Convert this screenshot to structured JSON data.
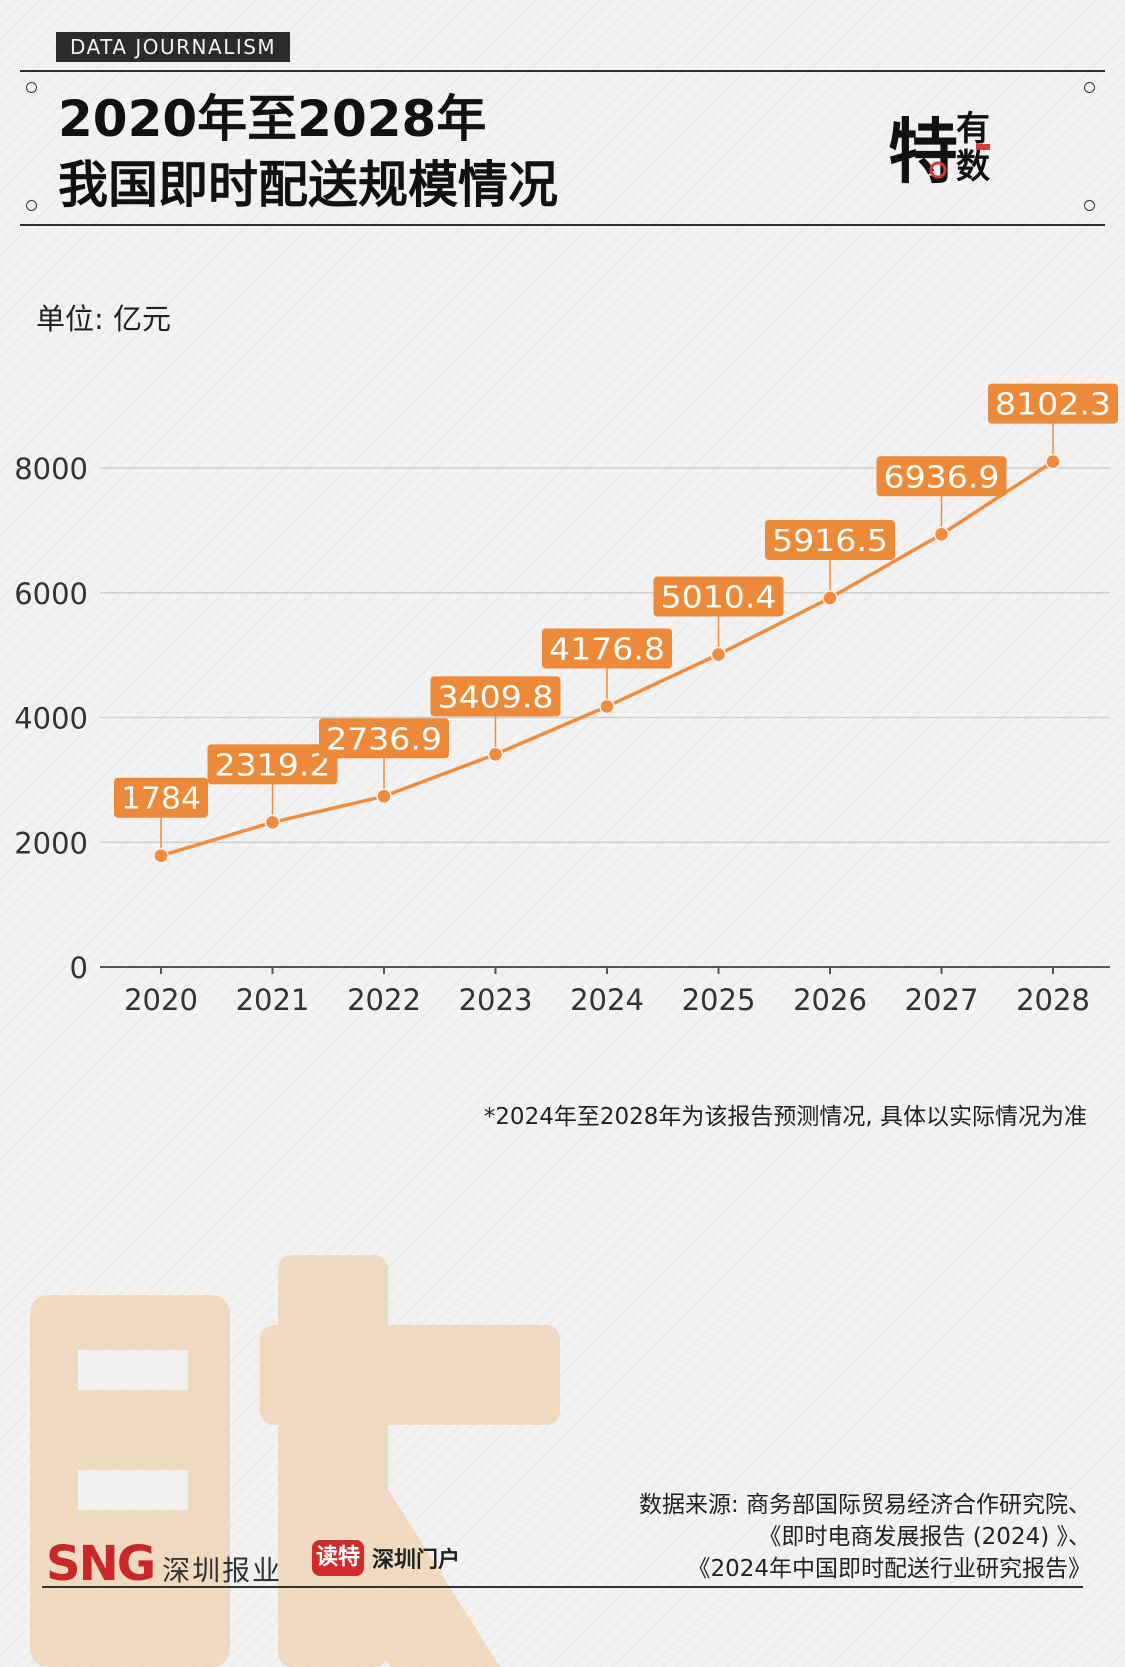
{
  "header": {
    "tag": "DATA JOURNALISM"
  },
  "brand": {
    "logo_main": "特",
    "logo_top": "有",
    "logo_bottom": "数"
  },
  "chart_data": {
    "type": "line",
    "title_lines": [
      "2020年至2028年",
      "我国即时配送规模情况"
    ],
    "unit": "单位: 亿元",
    "categories": [
      "2020",
      "2021",
      "2022",
      "2023",
      "2024",
      "2025",
      "2026",
      "2027",
      "2028"
    ],
    "series": [
      {
        "values": [
          1784,
          2319.2,
          2736.9,
          3409.8,
          4176.8,
          5010.4,
          5916.5,
          6936.9,
          8102.3
        ],
        "labels": [
          "1784",
          "2319.2",
          "2736.9",
          "3409.8",
          "4176.8",
          "5010.4",
          "5916.5",
          "6936.9",
          "8102.3"
        ]
      }
    ],
    "yticks": [
      0,
      2000,
      4000,
      6000,
      8000
    ],
    "ylim": [
      0,
      8000
    ],
    "grid": true,
    "colors": {
      "line": "#f08c3c",
      "label_bg": "#ec8a3a",
      "label_text": "#ffffff",
      "grid": "#cfcfcf",
      "axis": "#555555"
    }
  },
  "notes": {
    "forecast": "*2024年至2028年为该报告预测情况, 具体以实际情况为准",
    "source_lines": [
      "数据来源: 商务部国际贸易经济合作研究院、",
      "《即时电商发展报告 (2024) 》、",
      "《2024年中国即时配送行业研究报告》"
    ]
  },
  "footer": {
    "sng_mark": "SNG",
    "sng_name": "深圳报业",
    "dute_badge": "读特",
    "dute_name": "深圳门户"
  }
}
